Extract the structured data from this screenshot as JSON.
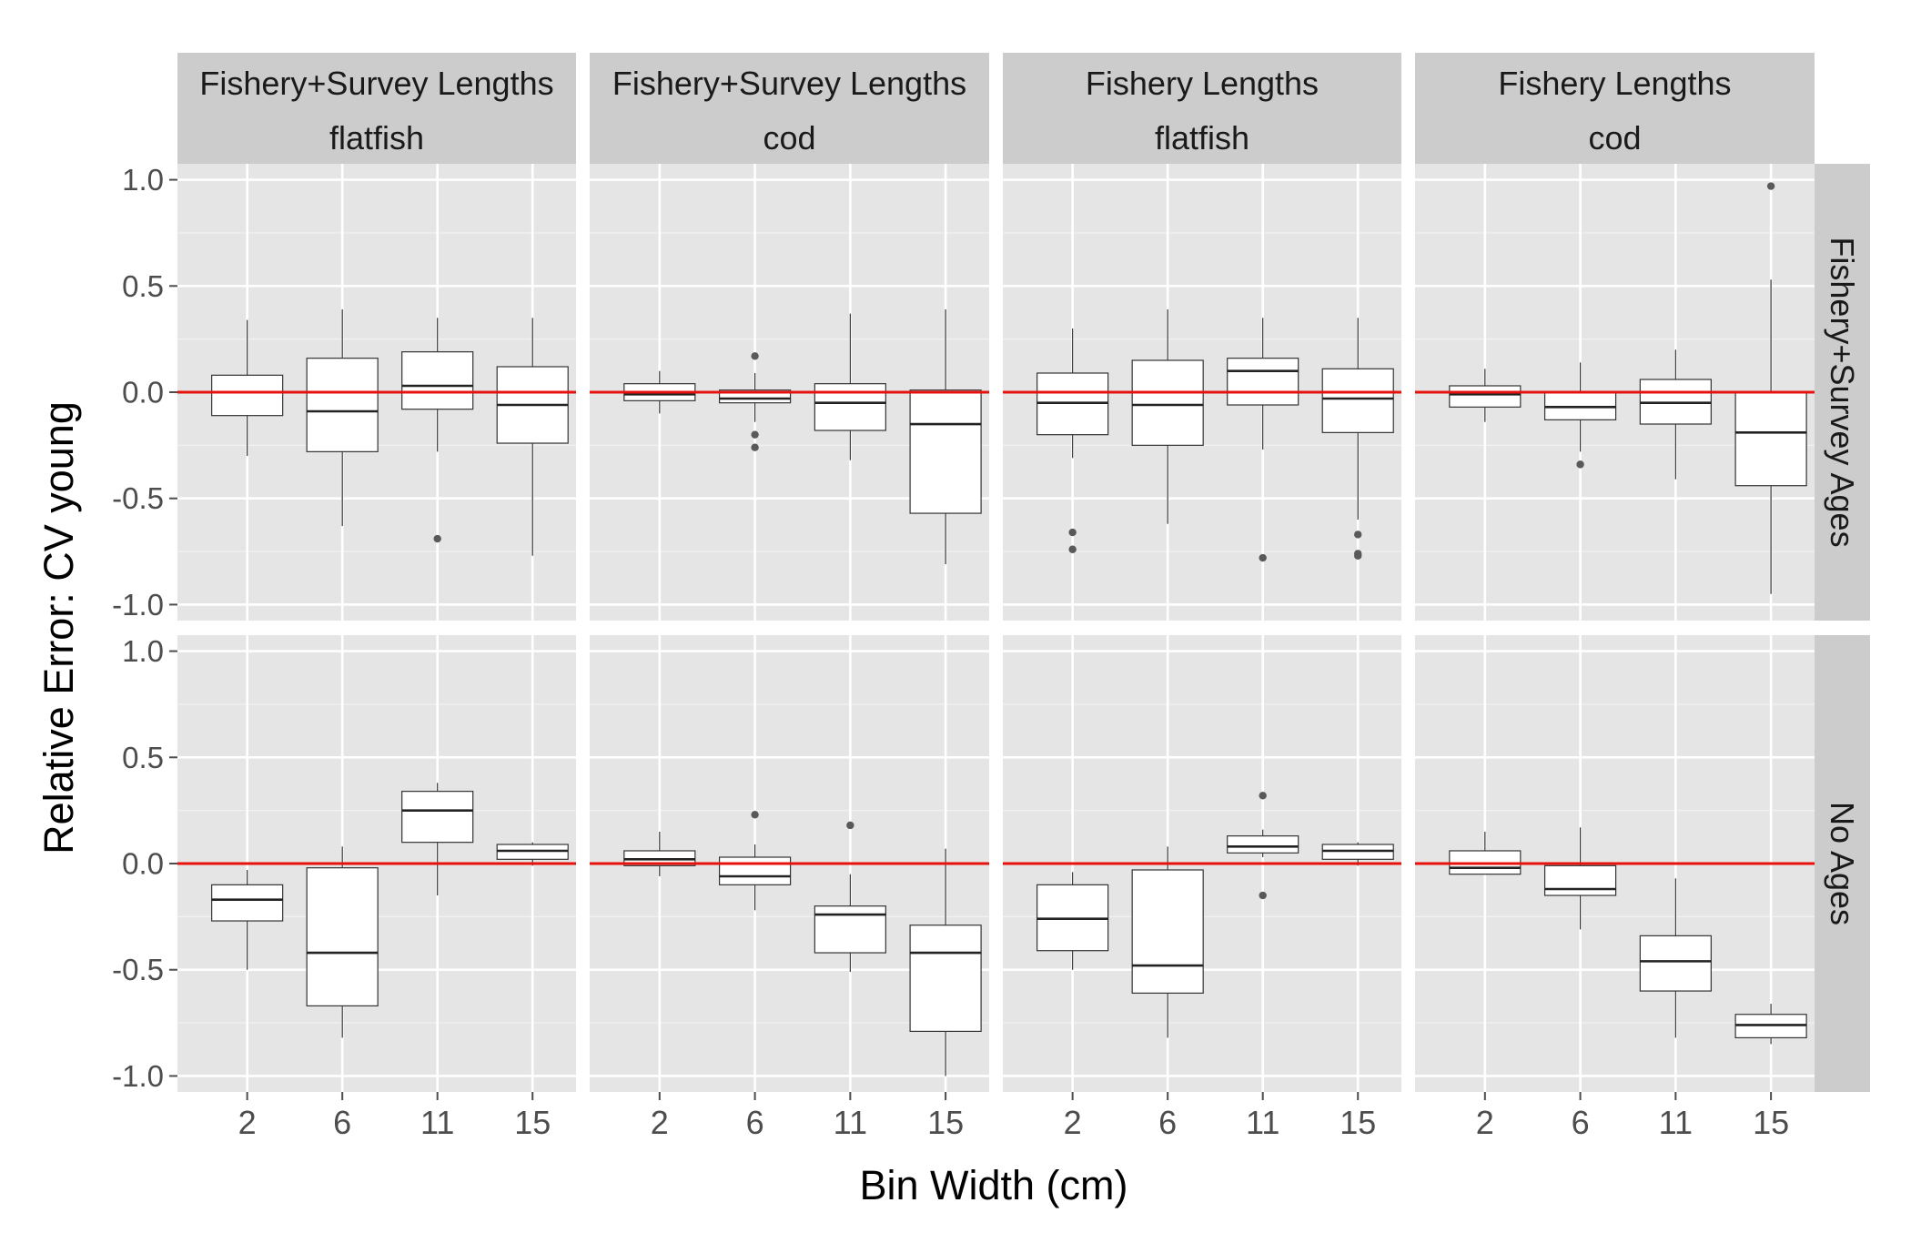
{
  "chart_data": {
    "type": "boxplot",
    "facet_layout": "grid",
    "ylabel": "Relative Error: CV young",
    "xlabel": "Bin Width (cm)",
    "categories": [
      "2",
      "6",
      "11",
      "15"
    ],
    "ylim": [
      -1.0,
      1.0
    ],
    "yticks": [
      "1.0",
      "0.5",
      "0.0",
      "-0.5",
      "-1.0"
    ],
    "grid": true,
    "reference_line": {
      "y": 0,
      "color": "#e8120c"
    },
    "columns": [
      {
        "top": "Fishery+Survey Lengths",
        "bottom": "flatfish"
      },
      {
        "top": "Fishery+Survey Lengths",
        "bottom": "cod"
      },
      {
        "top": "Fishery Lengths",
        "bottom": "flatfish"
      },
      {
        "top": "Fishery Lengths",
        "bottom": "cod"
      }
    ],
    "rows": [
      "Fishery+Survey Ages",
      "No Ages"
    ],
    "panels": [
      [
        {
          "boxes": [
            {
              "lw": -0.3,
              "q1": -0.11,
              "med": 0.0,
              "q3": 0.08,
              "uw": 0.34,
              "out": []
            },
            {
              "lw": -0.63,
              "q1": -0.28,
              "med": -0.09,
              "q3": 0.16,
              "uw": 0.39,
              "out": []
            },
            {
              "lw": -0.28,
              "q1": -0.08,
              "med": 0.03,
              "q3": 0.19,
              "uw": 0.35,
              "out": [
                -0.69
              ]
            },
            {
              "lw": -0.77,
              "q1": -0.24,
              "med": -0.06,
              "q3": 0.12,
              "uw": 0.35,
              "out": []
            }
          ]
        },
        {
          "boxes": [
            {
              "lw": -0.1,
              "q1": -0.04,
              "med": -0.01,
              "q3": 0.04,
              "uw": 0.1,
              "out": []
            },
            {
              "lw": -0.14,
              "q1": -0.05,
              "med": -0.03,
              "q3": 0.01,
              "uw": 0.09,
              "out": [
                0.17,
                -0.2,
                -0.26
              ]
            },
            {
              "lw": -0.32,
              "q1": -0.18,
              "med": -0.05,
              "q3": 0.04,
              "uw": 0.37,
              "out": []
            },
            {
              "lw": -0.81,
              "q1": -0.57,
              "med": -0.15,
              "q3": 0.01,
              "uw": 0.39,
              "out": []
            }
          ]
        },
        {
          "boxes": [
            {
              "lw": -0.31,
              "q1": -0.2,
              "med": -0.05,
              "q3": 0.09,
              "uw": 0.3,
              "out": [
                -0.66,
                -0.74
              ]
            },
            {
              "lw": -0.62,
              "q1": -0.25,
              "med": -0.06,
              "q3": 0.15,
              "uw": 0.39,
              "out": []
            },
            {
              "lw": -0.27,
              "q1": -0.06,
              "med": 0.1,
              "q3": 0.16,
              "uw": 0.35,
              "out": [
                -0.78
              ]
            },
            {
              "lw": -0.6,
              "q1": -0.19,
              "med": -0.03,
              "q3": 0.11,
              "uw": 0.35,
              "out": [
                -0.67,
                -0.76,
                -0.77
              ]
            }
          ]
        },
        {
          "boxes": [
            {
              "lw": -0.14,
              "q1": -0.07,
              "med": -0.01,
              "q3": 0.03,
              "uw": 0.11,
              "out": []
            },
            {
              "lw": -0.28,
              "q1": -0.13,
              "med": -0.07,
              "q3": 0.0,
              "uw": 0.14,
              "out": [
                -0.34
              ]
            },
            {
              "lw": -0.41,
              "q1": -0.15,
              "med": -0.05,
              "q3": 0.06,
              "uw": 0.2,
              "out": []
            },
            {
              "lw": -0.95,
              "q1": -0.44,
              "med": -0.19,
              "q3": 0.0,
              "uw": 0.53,
              "out": [
                0.97
              ]
            }
          ]
        }
      ],
      [
        {
          "boxes": [
            {
              "lw": -0.5,
              "q1": -0.27,
              "med": -0.17,
              "q3": -0.1,
              "uw": -0.03,
              "out": []
            },
            {
              "lw": -0.82,
              "q1": -0.67,
              "med": -0.42,
              "q3": -0.02,
              "uw": 0.08,
              "out": []
            },
            {
              "lw": -0.15,
              "q1": 0.1,
              "med": 0.25,
              "q3": 0.34,
              "uw": 0.38,
              "out": []
            },
            {
              "lw": -0.01,
              "q1": 0.02,
              "med": 0.06,
              "q3": 0.09,
              "uw": 0.1,
              "out": []
            }
          ]
        },
        {
          "boxes": [
            {
              "lw": -0.06,
              "q1": -0.01,
              "med": 0.02,
              "q3": 0.06,
              "uw": 0.15,
              "out": []
            },
            {
              "lw": -0.22,
              "q1": -0.1,
              "med": -0.06,
              "q3": 0.03,
              "uw": 0.09,
              "out": [
                0.23
              ]
            },
            {
              "lw": -0.51,
              "q1": -0.42,
              "med": -0.24,
              "q3": -0.2,
              "uw": -0.05,
              "out": [
                0.18
              ]
            },
            {
              "lw": -1.0,
              "q1": -0.79,
              "med": -0.42,
              "q3": -0.29,
              "uw": 0.07,
              "out": []
            }
          ]
        },
        {
          "boxes": [
            {
              "lw": -0.5,
              "q1": -0.41,
              "med": -0.26,
              "q3": -0.1,
              "uw": -0.04,
              "out": []
            },
            {
              "lw": -0.82,
              "q1": -0.61,
              "med": -0.48,
              "q3": -0.03,
              "uw": 0.08,
              "out": []
            },
            {
              "lw": 0.03,
              "q1": 0.05,
              "med": 0.08,
              "q3": 0.13,
              "uw": 0.16,
              "out": [
                0.32,
                -0.15
              ]
            },
            {
              "lw": -0.01,
              "q1": 0.02,
              "med": 0.06,
              "q3": 0.09,
              "uw": 0.1,
              "out": []
            }
          ]
        },
        {
          "boxes": [
            {
              "lw": -0.05,
              "q1": -0.05,
              "med": -0.02,
              "q3": 0.06,
              "uw": 0.15,
              "out": []
            },
            {
              "lw": -0.31,
              "q1": -0.15,
              "med": -0.12,
              "q3": -0.01,
              "uw": 0.17,
              "out": []
            },
            {
              "lw": -0.82,
              "q1": -0.6,
              "med": -0.46,
              "q3": -0.34,
              "uw": -0.07,
              "out": []
            },
            {
              "lw": -0.85,
              "q1": -0.82,
              "med": -0.76,
              "q3": -0.71,
              "uw": -0.66,
              "out": []
            }
          ]
        }
      ]
    ]
  }
}
